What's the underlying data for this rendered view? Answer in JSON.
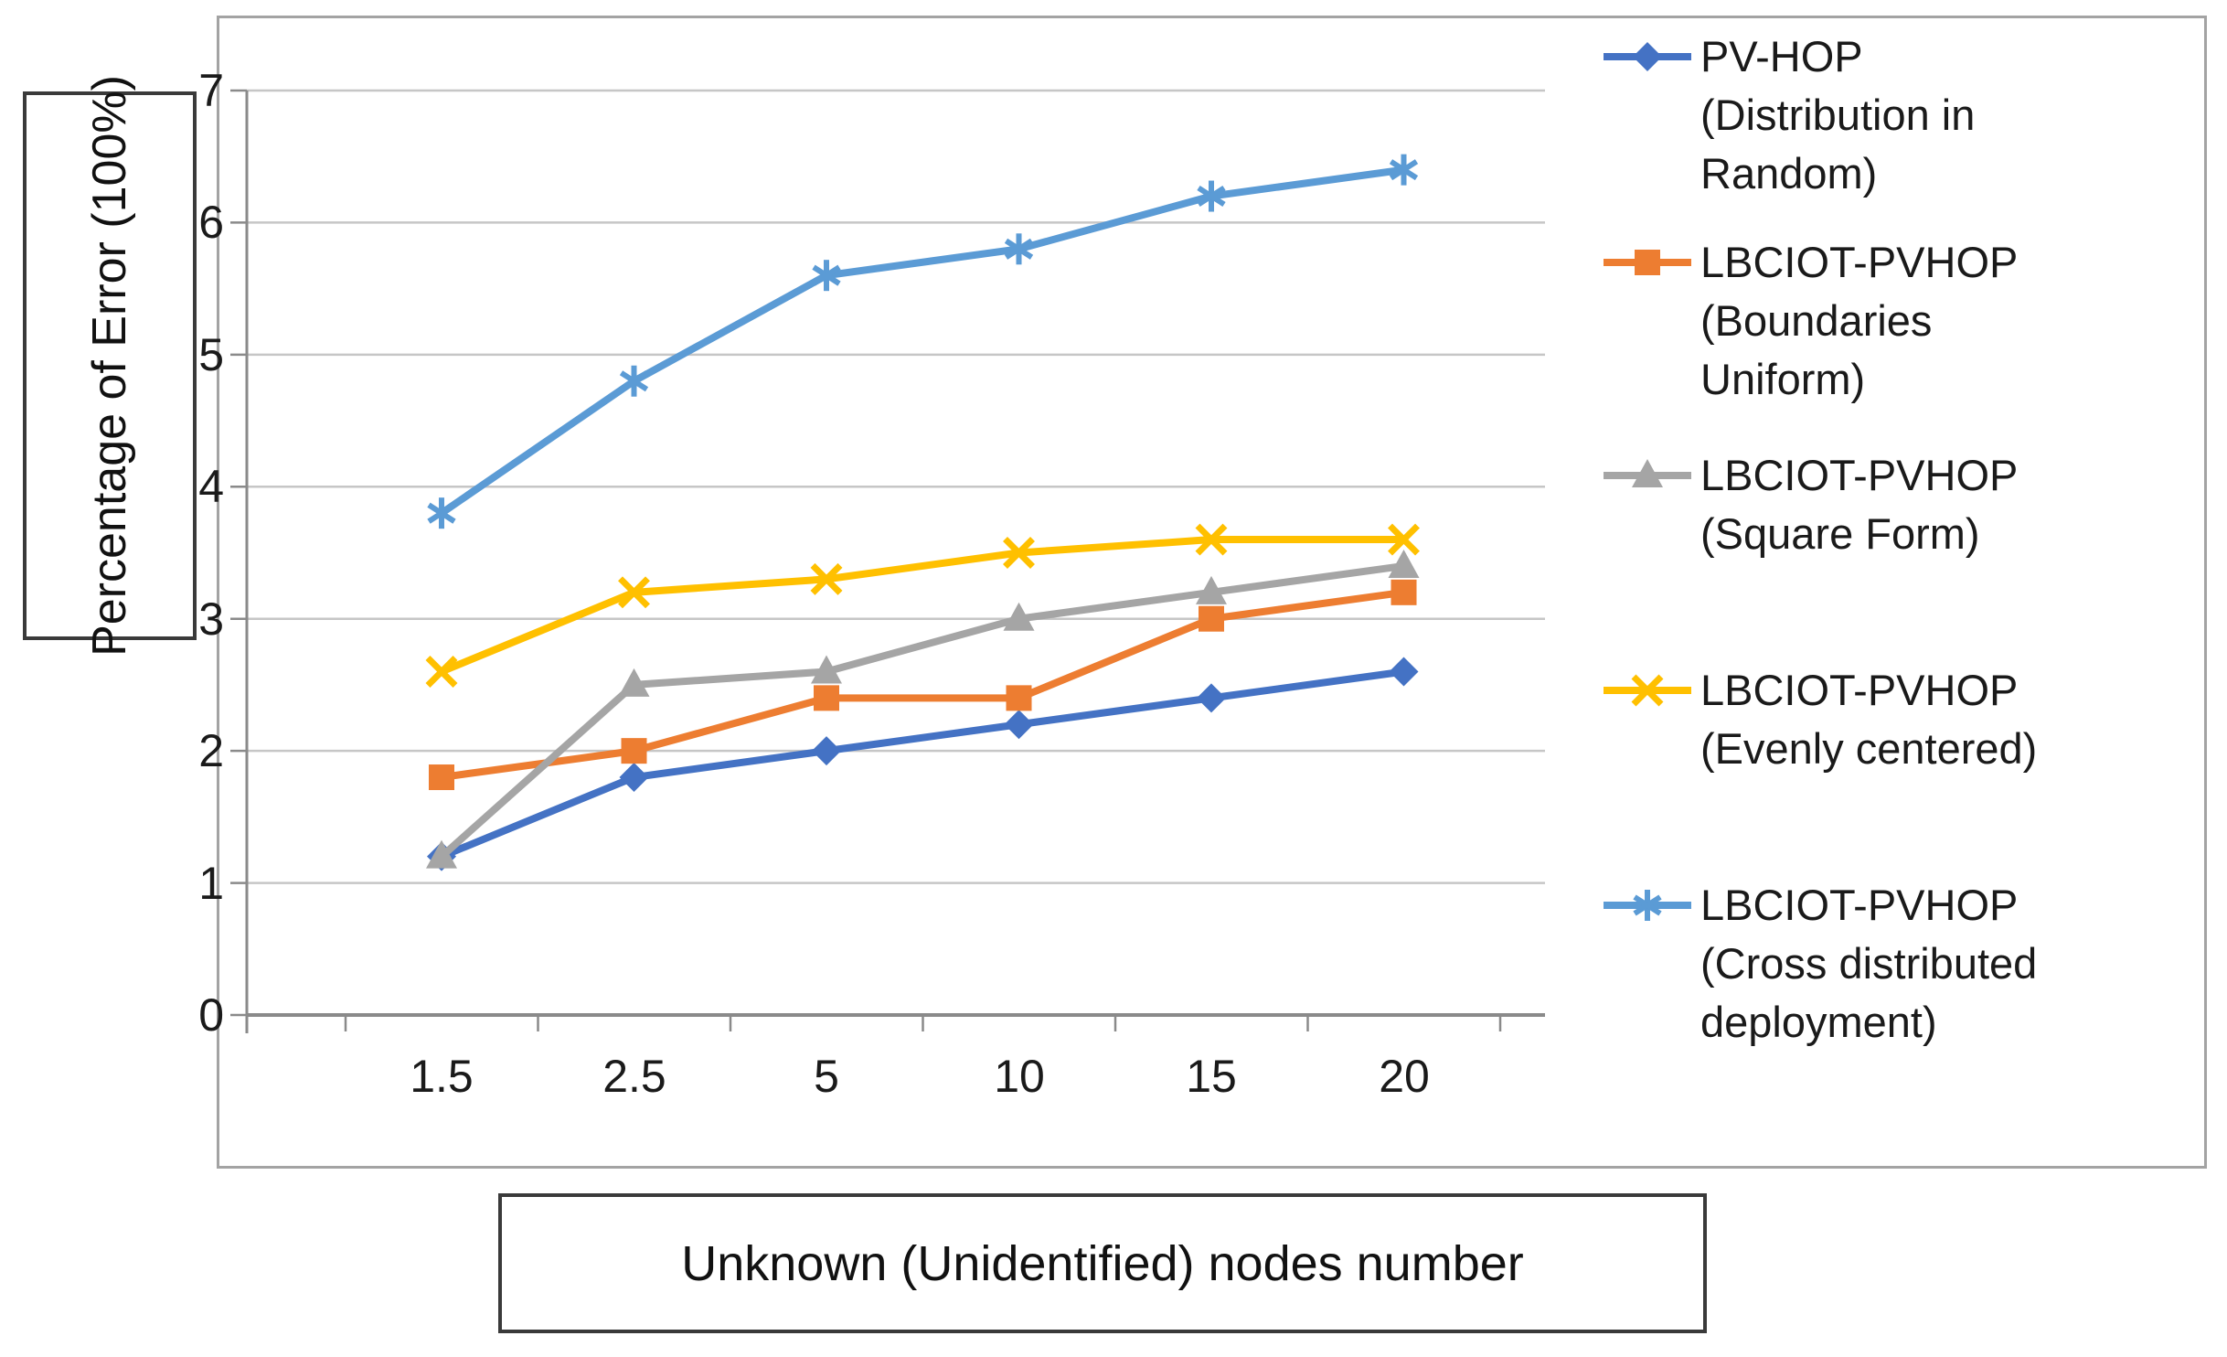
{
  "y_axis_title": "Percentage of Error (100%)",
  "x_axis_title": "Unknown (Unidentified) nodes number",
  "colors": {
    "series_blue": "#4472C4",
    "series_orange": "#ED7D31",
    "series_gray": "#A5A5A5",
    "series_yellow": "#FFC000",
    "series_lightblue": "#5B9BD5",
    "gridline": "#c6c6c6",
    "axis_line": "#8a8a8a",
    "text": "#1a1a1a",
    "frame_border": "#a3a3a3",
    "title_box_border": "#3a3a3a"
  },
  "chart_data": {
    "type": "line",
    "title": "",
    "xlabel": "Unknown (Unidentified) nodes number",
    "ylabel": "Percentage of Error (100%)",
    "categories": [
      "1.5",
      "2.5",
      "5",
      "10",
      "15",
      "20"
    ],
    "yticks": [
      0,
      1,
      2,
      3,
      4,
      5,
      6,
      7
    ],
    "ylim": [
      0,
      7
    ],
    "grid": true,
    "legend_position": "right",
    "series": [
      {
        "name": "PV-HOP (Distribution in Random)",
        "legend_lines": [
          "PV-HOP",
          "(Distribution in",
          "Random)"
        ],
        "color": "#4472C4",
        "marker": "diamond",
        "values": [
          1.2,
          1.8,
          2.0,
          2.2,
          2.4,
          2.6
        ]
      },
      {
        "name": "LBCIOT-PVHOP (Boundaries Uniform)",
        "legend_lines": [
          "LBCIOT-PVHOP",
          "(Boundaries",
          "Uniform)"
        ],
        "color": "#ED7D31",
        "marker": "square",
        "values": [
          1.8,
          2.0,
          2.4,
          2.4,
          3.0,
          3.2
        ]
      },
      {
        "name": "LBCIOT-PVHOP (Square Form)",
        "legend_lines": [
          "LBCIOT-PVHOP",
          "(Square Form)"
        ],
        "color": "#A5A5A5",
        "marker": "triangle",
        "values": [
          1.2,
          2.5,
          2.6,
          3.0,
          3.2,
          3.4
        ]
      },
      {
        "name": "LBCIOT-PVHOP (Evenly centered)",
        "legend_lines": [
          "LBCIOT-PVHOP",
          "(Evenly centered)"
        ],
        "color": "#FFC000",
        "marker": "x",
        "values": [
          2.6,
          3.2,
          3.3,
          3.5,
          3.6,
          3.6
        ]
      },
      {
        "name": "LBCIOT-PVHOP (Cross distributed deployment)",
        "legend_lines": [
          "LBCIOT-PVHOP",
          "(Cross distributed",
          "deployment)"
        ],
        "color": "#5B9BD5",
        "marker": "asterisk",
        "values": [
          3.8,
          4.8,
          5.6,
          5.8,
          6.2,
          6.4
        ]
      }
    ]
  }
}
